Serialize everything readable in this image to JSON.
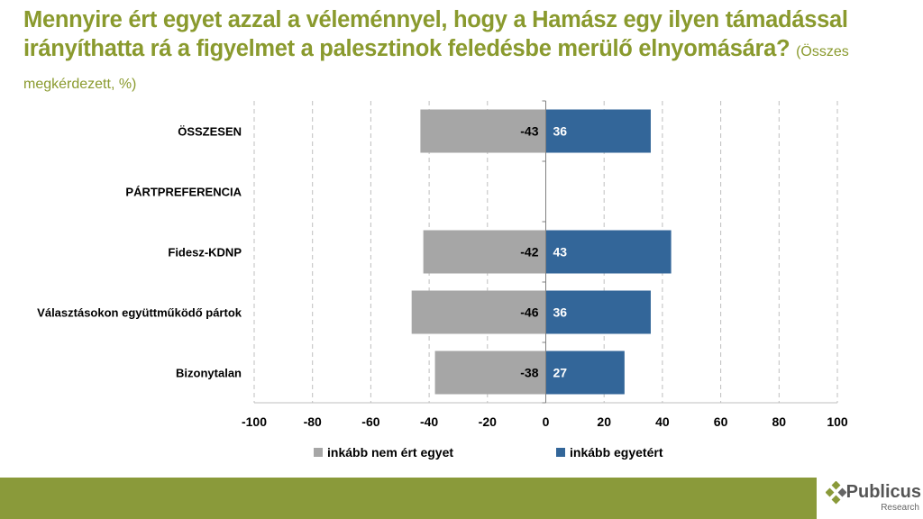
{
  "title": "Mennyire ért egyet azzal a véleménnyel, hogy a Hamász egy ilyen támadással irányíthatta rá a figyelmet a palesztinok feledésbe merülő elnyomására?",
  "subtitle": "(Összes megkérdezett, %)",
  "logo": {
    "name": "Publicus",
    "tagline": "Research"
  },
  "colors": {
    "title": "#8a9a2e",
    "disagree": "#a6a6a6",
    "agree": "#336699"
  },
  "chart_data": {
    "type": "bar",
    "orientation": "horizontal-diverging",
    "categories": [
      "ÖSSZESEN",
      "PÁRTPREFERENCIA",
      "Fidesz-KDNP",
      "Választásokon együttműködő pártok",
      "Bizonytalan"
    ],
    "series": [
      {
        "name": "inkább nem ért egyet",
        "values": [
          -43,
          null,
          -42,
          -46,
          -38
        ]
      },
      {
        "name": "inkább egyetért",
        "values": [
          36,
          null,
          43,
          36,
          27
        ]
      }
    ],
    "xlim": [
      -100,
      100
    ],
    "xticks": [
      -100,
      -80,
      -60,
      -40,
      -20,
      0,
      20,
      40,
      60,
      80,
      100
    ],
    "grid": "vertical dashed",
    "legend": "bottom"
  }
}
